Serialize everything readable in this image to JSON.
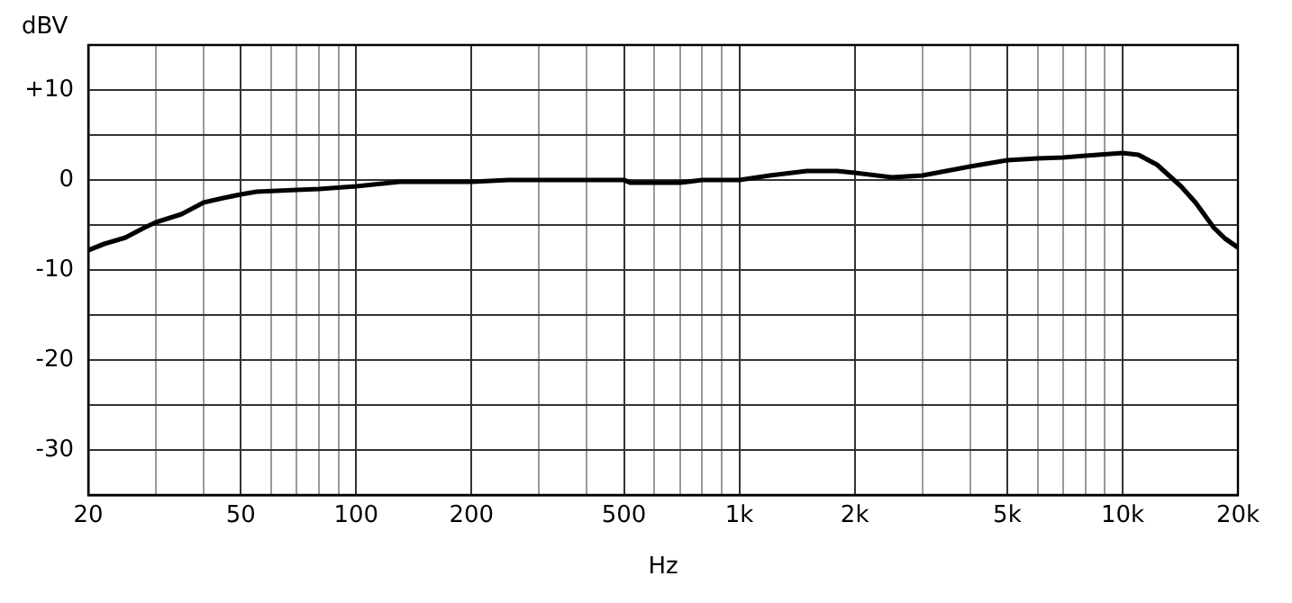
{
  "chart_data": {
    "type": "line",
    "xlabel": "Hz",
    "ylabel": "dBV",
    "log": "x",
    "xlim": [
      20,
      20000
    ],
    "xticks": [
      20,
      {
        "value": 30,
        "label": null
      },
      {
        "value": 40,
        "label": null
      },
      50,
      {
        "value": 60,
        "label": null
      },
      {
        "value": 70,
        "label": null
      },
      {
        "value": 80,
        "label": null
      },
      {
        "value": 90,
        "label": null
      },
      100,
      200,
      {
        "value": 300,
        "label": null
      },
      {
        "value": 400,
        "label": null
      },
      500,
      {
        "value": 600,
        "label": null
      },
      {
        "value": 700,
        "label": null
      },
      {
        "value": 800,
        "label": null
      },
      {
        "value": 900,
        "label": null
      },
      {
        "value": 1000,
        "label": "1k"
      },
      {
        "value": 2000,
        "label": "2k"
      },
      {
        "value": 3000,
        "label": null
      },
      {
        "value": 4000,
        "label": null
      },
      {
        "value": 5000,
        "label": "5k"
      },
      {
        "value": 6000,
        "label": null
      },
      {
        "value": 7000,
        "label": null
      },
      {
        "value": 8000,
        "label": null
      },
      {
        "value": 9000,
        "label": null
      },
      {
        "value": 10000,
        "label": "10k"
      },
      {
        "value": 20000,
        "label": "20k"
      }
    ],
    "ylim": [
      -35,
      15
    ],
    "yticks": [
      -30,
      {
        "value": -25,
        "label": null
      },
      -20,
      {
        "value": -15,
        "label": null
      },
      -10,
      {
        "value": -5,
        "label": null
      },
      0,
      {
        "value": 5,
        "label": null
      },
      {
        "value": 10,
        "label": "+10"
      },
      {
        "value": 15,
        "label": null
      }
    ],
    "grid": true,
    "legend": false,
    "marker": "none",
    "line_style": "solid",
    "series": [
      {
        "color": "#000000",
        "x": [
          20,
          22,
          25,
          28,
          30,
          35,
          40,
          45,
          50,
          55,
          70,
          80,
          100,
          130,
          200,
          250,
          500,
          520,
          700,
          800,
          1000,
          1200,
          1500,
          1800,
          2000,
          2500,
          3000,
          4000,
          5000,
          6000,
          7000,
          8000,
          10000,
          11000,
          12300,
          14200,
          15500,
          17300,
          18500,
          20000
        ],
        "values": [
          -7.8,
          -7.1,
          -6.4,
          -5.3,
          -4.7,
          -3.8,
          -2.5,
          -2.0,
          -1.6,
          -1.3,
          -1.1,
          -1.0,
          -0.7,
          -0.2,
          -0.2,
          0,
          0,
          -0.3,
          -0.3,
          0,
          0,
          0.5,
          1.0,
          1.0,
          0.8,
          0.3,
          0.5,
          1.5,
          2.2,
          2.4,
          2.5,
          2.7,
          3.0,
          2.8,
          1.7,
          -0.7,
          -2.5,
          -5.3,
          -6.5,
          -7.5
        ]
      }
    ]
  }
}
